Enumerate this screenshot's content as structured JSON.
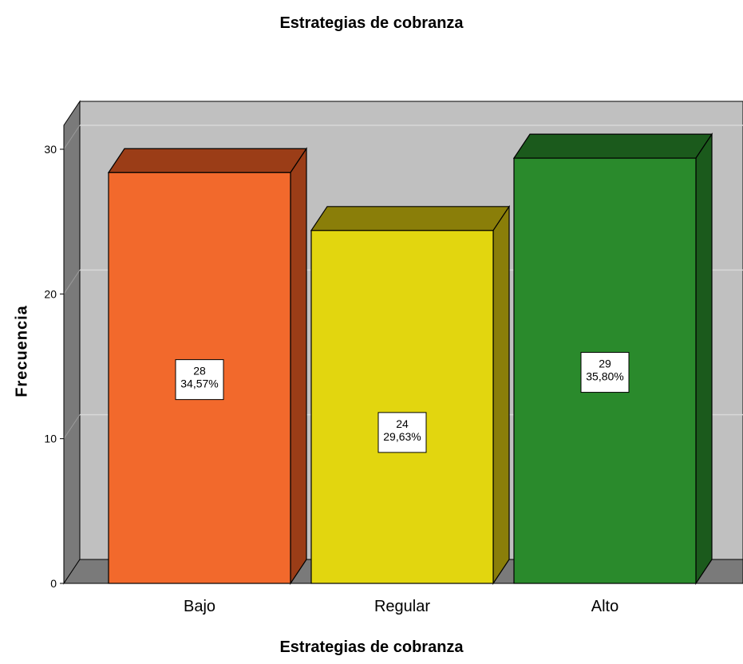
{
  "chart_data": {
    "type": "bar",
    "title": "Estrategias de cobranza",
    "xlabel": "Estrategias de cobranza",
    "ylabel": "Frecuencia",
    "categories": [
      "Bajo",
      "Regular",
      "Alto"
    ],
    "values": [
      28,
      24,
      29
    ],
    "percent_labels": [
      "34,57%",
      "29,63%",
      "35,80%"
    ],
    "ylim": [
      0,
      30
    ],
    "yticks": [
      0,
      10,
      20,
      30
    ],
    "grid": true,
    "style": "3d",
    "colors": [
      "#f2692c",
      "#e2d60f",
      "#2a8a2c"
    ],
    "side_colors": [
      "#9b3d17",
      "#8a7e09",
      "#1b5a1c"
    ],
    "background_color": "#c0c0c0"
  }
}
